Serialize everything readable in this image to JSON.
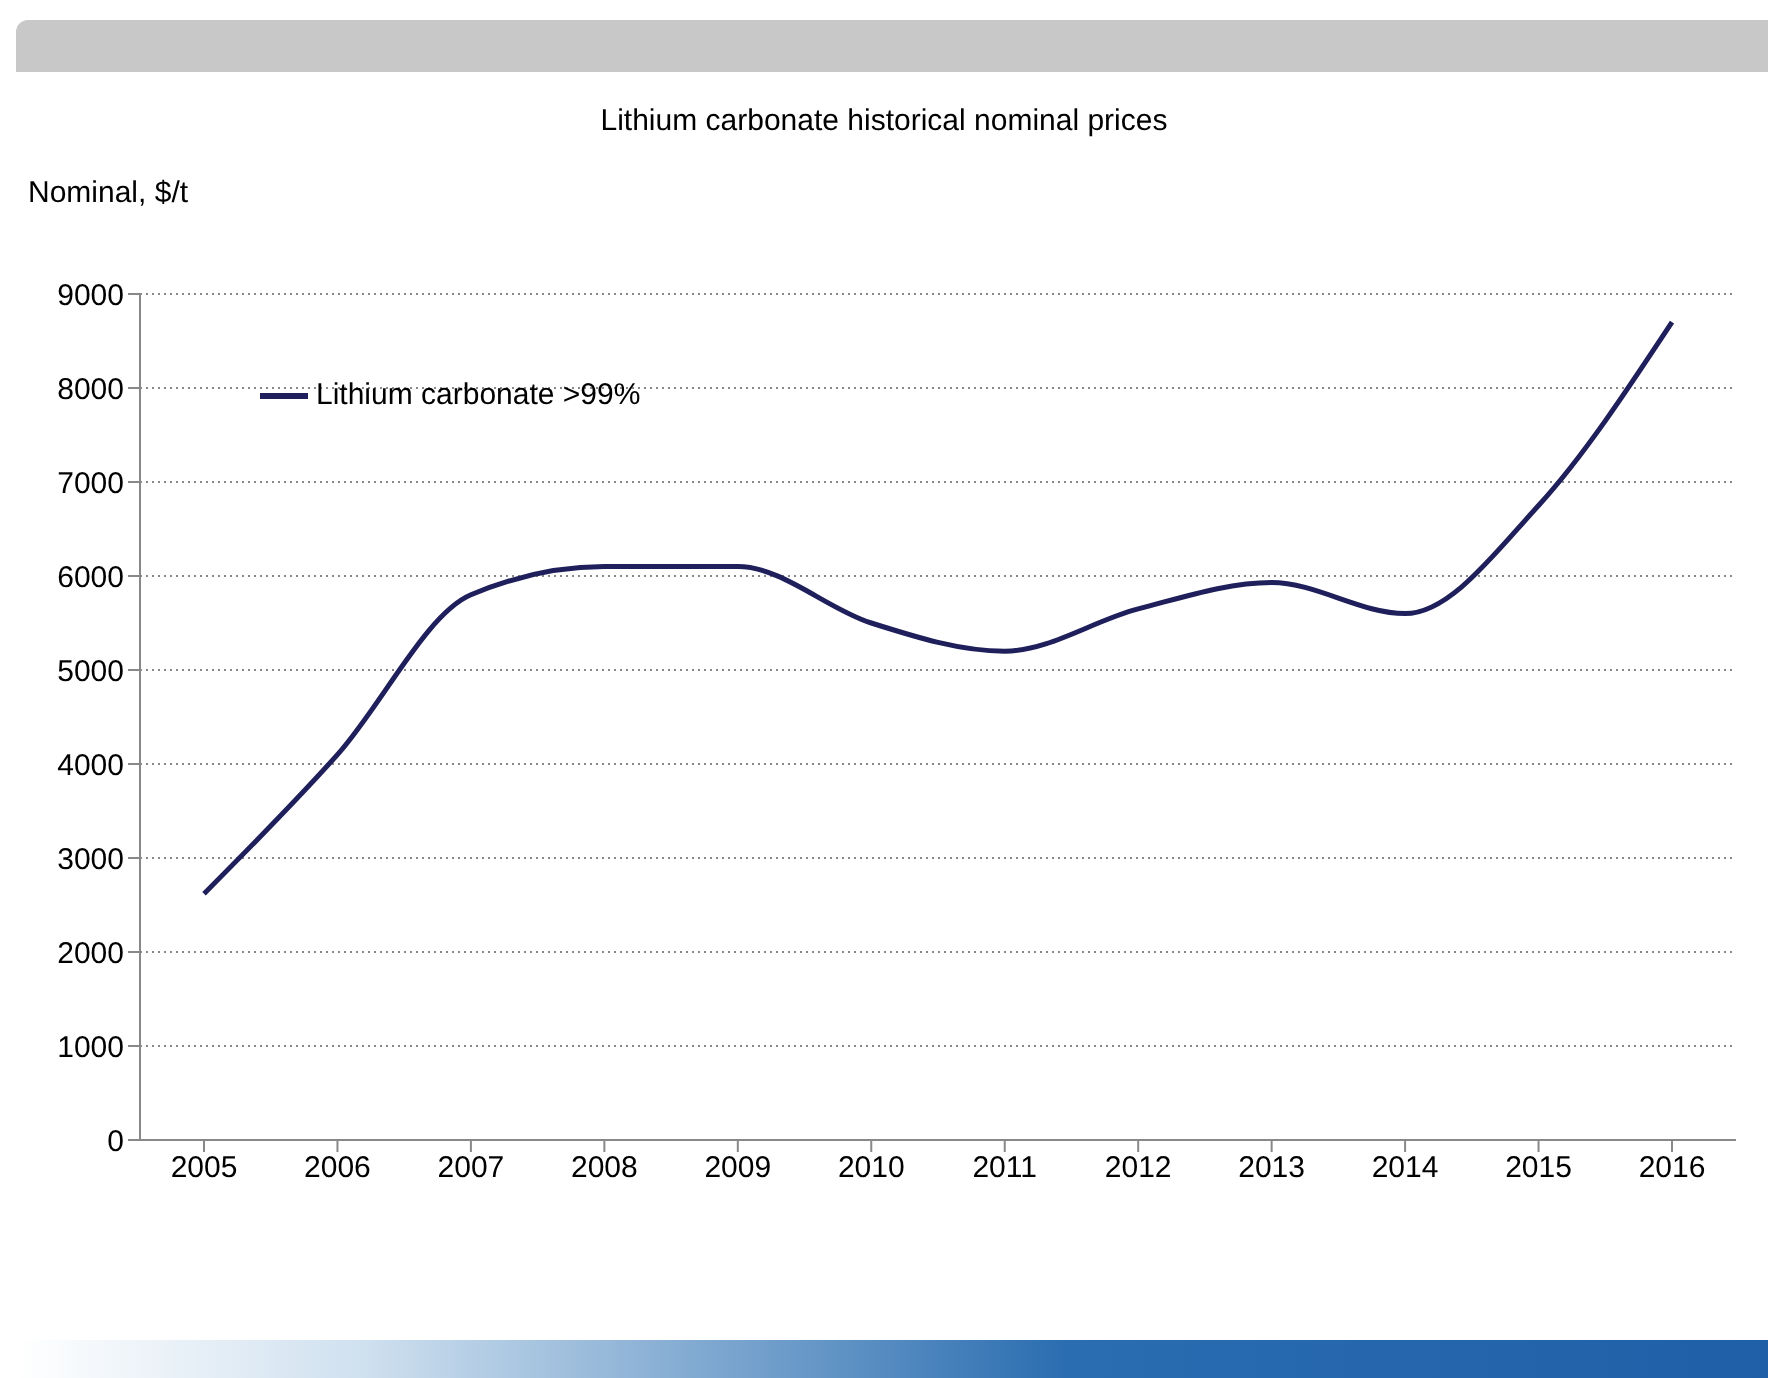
{
  "chart_data": {
    "type": "line",
    "title": "Lithium carbonate historical nominal prices",
    "ylabel": "Nominal, $/t",
    "categories": [
      "2005",
      "2006",
      "2007",
      "2008",
      "2009",
      "2010",
      "2011",
      "2012",
      "2013",
      "2014",
      "2015",
      "2016"
    ],
    "series": [
      {
        "name": "Lithium carbonate >99%",
        "color": "#1f1f5c",
        "values": [
          2620,
          4100,
          5800,
          6100,
          6100,
          5500,
          5200,
          5650,
          5930,
          5600,
          6750,
          8700
        ]
      }
    ],
    "ylim": [
      0,
      9000
    ],
    "yticks": [
      0,
      1000,
      2000,
      3000,
      4000,
      5000,
      6000,
      7000,
      8000,
      9000
    ],
    "grid": "y",
    "legend": "top left",
    "marker": "none",
    "line_style": "solid"
  }
}
